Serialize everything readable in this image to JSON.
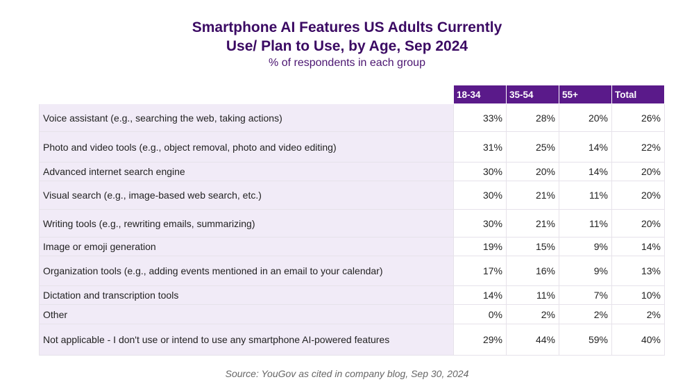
{
  "chart_data": {
    "type": "table",
    "title": "Smartphone AI Features US Adults Currently Use/ Plan to Use, by Age, Sep 2024",
    "title_lines": [
      "Smartphone AI Features US Adults Currently",
      "Use/ Plan to Use, by Age, Sep 2024"
    ],
    "subtitle": "% of respondents in each group",
    "columns": [
      "18-34",
      "35-54",
      "55+",
      "Total"
    ],
    "rows": [
      {
        "label": "Voice assistant (e.g., searching the web, taking actions)",
        "values": [
          "33%",
          "28%",
          "20%",
          "26%"
        ]
      },
      {
        "label": "Photo and video tools (e.g., object removal, photo and video editing)",
        "values": [
          "31%",
          "25%",
          "14%",
          "22%"
        ]
      },
      {
        "label": "Advanced internet search engine",
        "values": [
          "30%",
          "20%",
          "14%",
          "20%"
        ]
      },
      {
        "label": "Visual search (e.g., image-based web search, etc.)",
        "values": [
          "30%",
          "21%",
          "11%",
          "20%"
        ]
      },
      {
        "label": "Writing tools (e.g., rewriting emails, summarizing)",
        "values": [
          "30%",
          "21%",
          "11%",
          "20%"
        ]
      },
      {
        "label": "Image or emoji generation",
        "values": [
          "19%",
          "15%",
          "9%",
          "14%"
        ]
      },
      {
        "label": "Organization tools (e.g., adding events mentioned in an email to your calendar)",
        "values": [
          "17%",
          "16%",
          "9%",
          "13%"
        ]
      },
      {
        "label": "Dictation and transcription tools",
        "values": [
          "14%",
          "11%",
          "7%",
          "10%"
        ]
      },
      {
        "label": "Other",
        "values": [
          "0%",
          "2%",
          "2%",
          "2%"
        ]
      },
      {
        "label": "Not applicable - I don't use or intend to use any smartphone AI-powered features",
        "values": [
          "29%",
          "44%",
          "59%",
          "40%"
        ]
      }
    ],
    "source": "Source: YouGov as cited in company blog, Sep 30, 2024",
    "colors": {
      "title": "#3b0a63",
      "header_bg": "#5a1a8a",
      "label_bg": "#f1ebf7"
    }
  }
}
